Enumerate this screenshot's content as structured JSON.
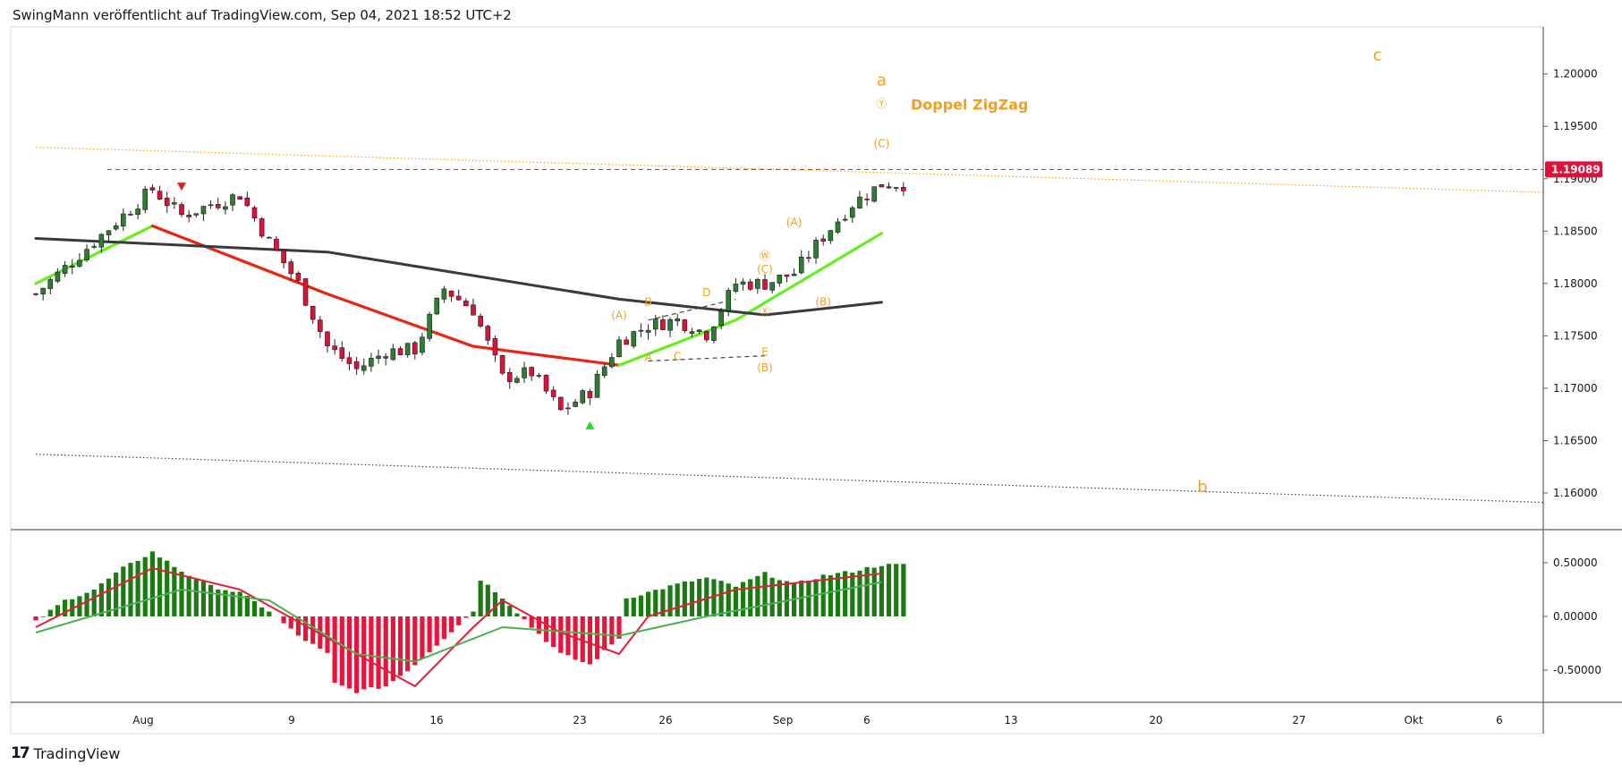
{
  "header": {
    "caption": "SwingMann veröffentlicht auf TradingView.com, Sep 04, 2021 18:52 UTC+2"
  },
  "footer": {
    "logo_mark": "17",
    "brand": "TradingView"
  },
  "colors": {
    "up": "#2e7d32",
    "down": "#e0103b",
    "sma_green": "#66ee22",
    "sma_red": "#ee2211",
    "ema_long": "#3a3a3a",
    "elliott": "#f0a020",
    "price_tag": "#e0103b",
    "macd_up": "#1b7a12",
    "macd_down": "#e8143c",
    "signal_green": "#4caf50",
    "signal_red": "#e51c3a"
  },
  "chart_data": [
    {
      "type": "candlestick",
      "title": "",
      "symbol": "",
      "x_ticks": [
        "Aug",
        "9",
        "16",
        "23",
        "26",
        "Sep",
        "6",
        "13",
        "20",
        "27",
        "Okt",
        "6"
      ],
      "y_ticks": [
        "1.20000",
        "1.19500",
        "1.19000",
        "1.18500",
        "1.18000",
        "1.17500",
        "1.17000",
        "1.16500",
        "1.16000"
      ],
      "ylim": [
        1.1565,
        1.2045
      ],
      "last_price_label": "1.19089",
      "last_price": 1.19089,
      "price_path": [
        [
          "2021-07-26",
          1.179
        ],
        [
          "2021-07-28",
          1.184
        ],
        [
          "2021-07-30",
          1.189
        ],
        [
          "2021-08-02",
          1.1865
        ],
        [
          "2021-08-04",
          1.1885
        ],
        [
          "2021-08-05",
          1.184
        ],
        [
          "2021-08-06",
          1.18
        ],
        [
          "2021-08-09",
          1.174
        ],
        [
          "2021-08-10",
          1.1718
        ],
        [
          "2021-08-11",
          1.1735
        ],
        [
          "2021-08-12",
          1.1737
        ],
        [
          "2021-08-13",
          1.1795
        ],
        [
          "2021-08-16",
          1.1775
        ],
        [
          "2021-08-17",
          1.171
        ],
        [
          "2021-08-18",
          1.1715
        ],
        [
          "2021-08-19",
          1.1678
        ],
        [
          "2021-08-20",
          1.1697
        ],
        [
          "2021-08-23",
          1.1745
        ],
        [
          "2021-08-24",
          1.176
        ],
        [
          "2021-08-25",
          1.1765
        ],
        [
          "2021-08-26",
          1.1752
        ],
        [
          "2021-08-27",
          1.18
        ],
        [
          "2021-08-30",
          1.18
        ],
        [
          "2021-08-31",
          1.181
        ],
        [
          "2021-09-01",
          1.1845
        ],
        [
          "2021-09-02",
          1.1876
        ],
        [
          "2021-09-03",
          1.1895
        ]
      ],
      "moving_averages": [
        {
          "color": "green",
          "points": [
            [
              "2021-07-26",
              1.18
            ],
            [
              "2021-07-30",
              1.1855
            ]
          ]
        },
        {
          "color": "red",
          "points": [
            [
              "2021-07-30",
              1.1855
            ],
            [
              "2021-08-09",
              1.179
            ],
            [
              "2021-08-16",
              1.174
            ],
            [
              "2021-08-23",
              1.1722
            ]
          ]
        },
        {
          "color": "green",
          "points": [
            [
              "2021-08-23",
              1.1722
            ],
            [
              "2021-08-27",
              1.1765
            ],
            [
              "2021-09-03",
              1.1848
            ]
          ]
        },
        {
          "color": "dark",
          "points": [
            [
              "2021-07-26",
              1.1843
            ],
            [
              "2021-08-09",
              1.183
            ],
            [
              "2021-08-23",
              1.1785
            ],
            [
              "2021-08-30",
              1.177
            ],
            [
              "2021-09-03",
              1.1782
            ]
          ]
        }
      ],
      "annotations": [
        {
          "text": "a",
          "x": "2021-09-03",
          "y": 1.1989,
          "size": "large"
        },
        {
          "text": "Ⓨ",
          "x": "2021-09-03",
          "y": 1.1968
        },
        {
          "text": "Doppel ZigZag",
          "x": "2021-09-05",
          "y": 1.1966,
          "size": "medium"
        },
        {
          "text": "(C)",
          "x": "2021-09-03",
          "y": 1.193
        },
        {
          "text": "c",
          "x": "2021-09-28",
          "y": 1.2013,
          "size": "large"
        },
        {
          "text": "b",
          "x": "2021-09-18",
          "y": 1.1601,
          "size": "large"
        },
        {
          "text": "(A)",
          "x": "2021-08-31",
          "y": 1.1855
        },
        {
          "text": "Ⓦ",
          "x": "2021-08-29",
          "y": 1.1823
        },
        {
          "text": "(C)",
          "x": "2021-08-29",
          "y": 1.181
        },
        {
          "text": "Ⓧ",
          "x": "2021-08-30",
          "y": 1.177
        },
        {
          "text": "(B)",
          "x": "2021-09-01",
          "y": 1.1779
        },
        {
          "text": "(A)",
          "x": "2021-08-23",
          "y": 1.1766
        },
        {
          "text": "B",
          "x": "2021-08-24",
          "y": 1.1779
        },
        {
          "text": "D",
          "x": "2021-08-26",
          "y": 1.1788
        },
        {
          "text": "A",
          "x": "2021-08-24",
          "y": 1.1726
        },
        {
          "text": "C",
          "x": "2021-08-25",
          "y": 1.1727
        },
        {
          "text": "E",
          "x": "2021-08-28",
          "y": 1.1731
        },
        {
          "text": "(B)",
          "x": "2021-08-28",
          "y": 1.1716
        }
      ],
      "signals": [
        {
          "type": "sell",
          "x": "2021-08-01",
          "y": 1.1892
        },
        {
          "type": "buy",
          "x": "2021-08-20",
          "y": 1.1665
        }
      ],
      "horizontal_lines": [
        {
          "y": 1.19089,
          "style": "dashed",
          "color": "red"
        }
      ],
      "trendlines": [
        {
          "style": "dotted",
          "color": "orange",
          "from": [
            "2021-07-26",
            1.193
          ],
          "to": [
            "2021-10-08",
            1.1887
          ]
        },
        {
          "style": "dotted",
          "color": "black",
          "from": [
            "2021-07-26",
            1.1637
          ],
          "to": [
            "2021-10-08",
            1.1591
          ]
        },
        {
          "style": "dashed",
          "color": "black",
          "from": [
            "2021-08-24",
            1.1765
          ],
          "to": [
            "2021-08-27",
            1.1785
          ]
        },
        {
          "style": "dashed",
          "color": "black",
          "from": [
            "2021-08-24",
            1.1726
          ],
          "to": [
            "2021-08-28",
            1.1731
          ]
        }
      ]
    },
    {
      "type": "histogram",
      "title": "",
      "y_ticks": [
        "0.50000",
        "0.00000",
        "-0.50000"
      ],
      "ylim": [
        -0.8,
        0.8
      ],
      "histogram_path": [
        [
          "2021-07-26",
          -0.05
        ],
        [
          "2021-07-27",
          0.15
        ],
        [
          "2021-07-28",
          0.25
        ],
        [
          "2021-07-29",
          0.45
        ],
        [
          "2021-07-30",
          0.6
        ],
        [
          "2021-08-02",
          0.42
        ],
        [
          "2021-08-03",
          0.28
        ],
        [
          "2021-08-04",
          0.22
        ],
        [
          "2021-08-05",
          0.05
        ],
        [
          "2021-08-06",
          -0.18
        ],
        [
          "2021-08-08",
          -0.35
        ],
        [
          "2021-08-09",
          -0.6
        ],
        [
          "2021-08-10",
          -0.7
        ],
        [
          "2021-08-11",
          -0.65
        ],
        [
          "2021-08-12",
          -0.45
        ],
        [
          "2021-08-13",
          -0.2
        ],
        [
          "2021-08-15",
          0.05
        ],
        [
          "2021-08-16",
          0.4
        ],
        [
          "2021-08-17",
          0.18
        ],
        [
          "2021-08-18",
          -0.1
        ],
        [
          "2021-08-19",
          -0.35
        ],
        [
          "2021-08-20",
          -0.45
        ],
        [
          "2021-08-22",
          -0.2
        ],
        [
          "2021-08-23",
          0.15
        ],
        [
          "2021-08-25",
          0.3
        ],
        [
          "2021-08-26",
          0.36
        ],
        [
          "2021-08-27",
          0.28
        ],
        [
          "2021-08-30",
          0.4
        ],
        [
          "2021-08-31",
          0.3
        ],
        [
          "2021-09-01",
          0.38
        ],
        [
          "2021-09-02",
          0.42
        ],
        [
          "2021-09-03",
          0.48
        ]
      ],
      "lines": [
        {
          "color": "red",
          "points": [
            [
              "2021-07-26",
              -0.1
            ],
            [
              "2021-07-30",
              0.45
            ],
            [
              "2021-08-04",
              0.25
            ],
            [
              "2021-08-08",
              -0.2
            ],
            [
              "2021-08-12",
              -0.65
            ],
            [
              "2021-08-16",
              -0.1
            ],
            [
              "2021-08-17",
              0.15
            ],
            [
              "2021-08-19",
              -0.15
            ],
            [
              "2021-08-21",
              -0.35
            ],
            [
              "2021-08-24",
              0.0
            ],
            [
              "2021-08-27",
              0.25
            ],
            [
              "2021-09-03",
              0.4
            ]
          ]
        },
        {
          "color": "green",
          "points": [
            [
              "2021-07-26",
              -0.15
            ],
            [
              "2021-08-01",
              0.25
            ],
            [
              "2021-08-05",
              0.15
            ],
            [
              "2021-08-10",
              -0.35
            ],
            [
              "2021-08-12",
              -0.42
            ],
            [
              "2021-08-17",
              -0.1
            ],
            [
              "2021-08-21",
              -0.18
            ],
            [
              "2021-08-26",
              0.0
            ],
            [
              "2021-09-03",
              0.32
            ]
          ]
        }
      ]
    }
  ]
}
